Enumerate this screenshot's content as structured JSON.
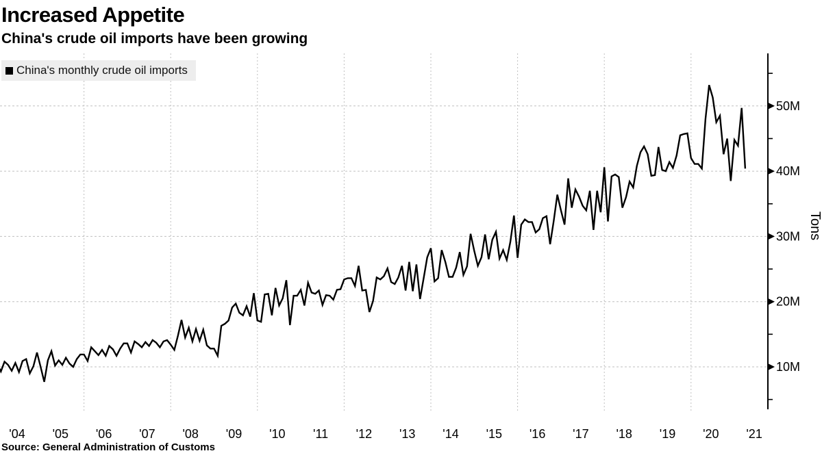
{
  "header": {
    "title": "Increased Appetite",
    "subtitle": "China's crude oil imports have been growing"
  },
  "legend": {
    "marker": "square",
    "label": "China's monthly crude oil imports"
  },
  "source": {
    "text": "Source: General Administration of Customs"
  },
  "colors": {
    "series": "#000000",
    "grid": "#bfbfbf",
    "axis": "#000000",
    "legend_bg": "#ededed",
    "text": "#000000"
  },
  "chart_data": {
    "type": "line",
    "title": "Increased Appetite",
    "subtitle": "China's crude oil imports have been growing",
    "ylabel": "Tons",
    "unit": "million tons per month",
    "x_start": "2004-01",
    "x_end": "2021-04",
    "frequency": "monthly",
    "ylim": [
      3.5,
      56.5
    ],
    "y_ticks_labeled": [
      10,
      20,
      30,
      40,
      50
    ],
    "y_tick_suffix": "M",
    "y_ticks_minor": [
      5,
      15,
      25,
      35,
      45,
      55
    ],
    "x_tick_labels": [
      "'04",
      "'05",
      "'06",
      "'07",
      "'08",
      "'09",
      "'10",
      "'11",
      "'12",
      "'13",
      "'14",
      "'15",
      "'16",
      "'17",
      "'18",
      "'19",
      "'20",
      "'21"
    ],
    "x_gridline_years": [
      2006,
      2008,
      2010,
      2012,
      2014,
      2016,
      2018,
      2020
    ],
    "grid": "dashed",
    "legend_position": "top-left",
    "series": [
      {
        "name": "China's monthly crude oil imports",
        "color": "#000000",
        "values": [
          10.4,
          9.3,
          10.8,
          10.3,
          9.4,
          10.6,
          9.2,
          10.9,
          11.2,
          9.0,
          10.1,
          12.2,
          10.0,
          7.7,
          11.0,
          12.4,
          10.2,
          11.0,
          10.3,
          11.4,
          10.5,
          10.0,
          11.2,
          11.9,
          11.9,
          10.9,
          13.0,
          12.4,
          11.8,
          12.6,
          11.7,
          13.2,
          12.7,
          11.7,
          12.8,
          13.6,
          13.6,
          12.2,
          13.9,
          13.5,
          13.0,
          13.8,
          13.2,
          14.1,
          13.7,
          13.0,
          13.9,
          14.1,
          13.4,
          12.6,
          14.8,
          17.2,
          14.5,
          16.0,
          13.9,
          15.8,
          14.0,
          15.7,
          13.3,
          12.8,
          12.8,
          11.7,
          16.3,
          16.6,
          17.1,
          19.1,
          19.7,
          18.3,
          17.9,
          19.3,
          17.7,
          21.3,
          17.1,
          16.9,
          21.1,
          21.2,
          17.9,
          22.1,
          19.4,
          20.5,
          23.3,
          16.4,
          20.9,
          20.9,
          21.8,
          19.4,
          22.9,
          21.4,
          21.2,
          21.7,
          19.5,
          21.0,
          20.9,
          20.3,
          21.8,
          21.9,
          23.4,
          23.6,
          23.6,
          22.4,
          25.5,
          21.7,
          21.8,
          18.4,
          20.1,
          23.7,
          23.4,
          23.9,
          25.1,
          23.0,
          22.7,
          23.7,
          25.5,
          21.7,
          26.1,
          21.6,
          25.7,
          20.4,
          23.6,
          26.8,
          28.2,
          23.1,
          23.6,
          27.9,
          26.1,
          23.8,
          23.8,
          25.2,
          27.6,
          24.1,
          25.4,
          30.4,
          27.8,
          25.5,
          26.8,
          30.3,
          26.5,
          29.5,
          30.7,
          26.6,
          27.9,
          26.4,
          29.2,
          33.2,
          26.7,
          31.8,
          32.6,
          32.2,
          32.2,
          30.6,
          31.1,
          32.8,
          33.1,
          28.8,
          32.4,
          36.4,
          34.0,
          31.8,
          38.9,
          34.4,
          37.2,
          36.1,
          34.7,
          34.0,
          37.0,
          31.0,
          37.0,
          33.7,
          40.6,
          32.3,
          39.2,
          39.5,
          39.1,
          34.4,
          36.0,
          38.4,
          37.5,
          40.8,
          42.9,
          43.8,
          42.6,
          39.3,
          39.4,
          43.7,
          40.2,
          40.0,
          41.4,
          40.5,
          42.4,
          45.5,
          45.7,
          45.8,
          42.0,
          41.1,
          41.1,
          40.4,
          48.0,
          53.2,
          51.3,
          47.5,
          48.5,
          42.6,
          45.0,
          38.5,
          44.8,
          43.9,
          49.7,
          40.4
        ]
      }
    ]
  }
}
